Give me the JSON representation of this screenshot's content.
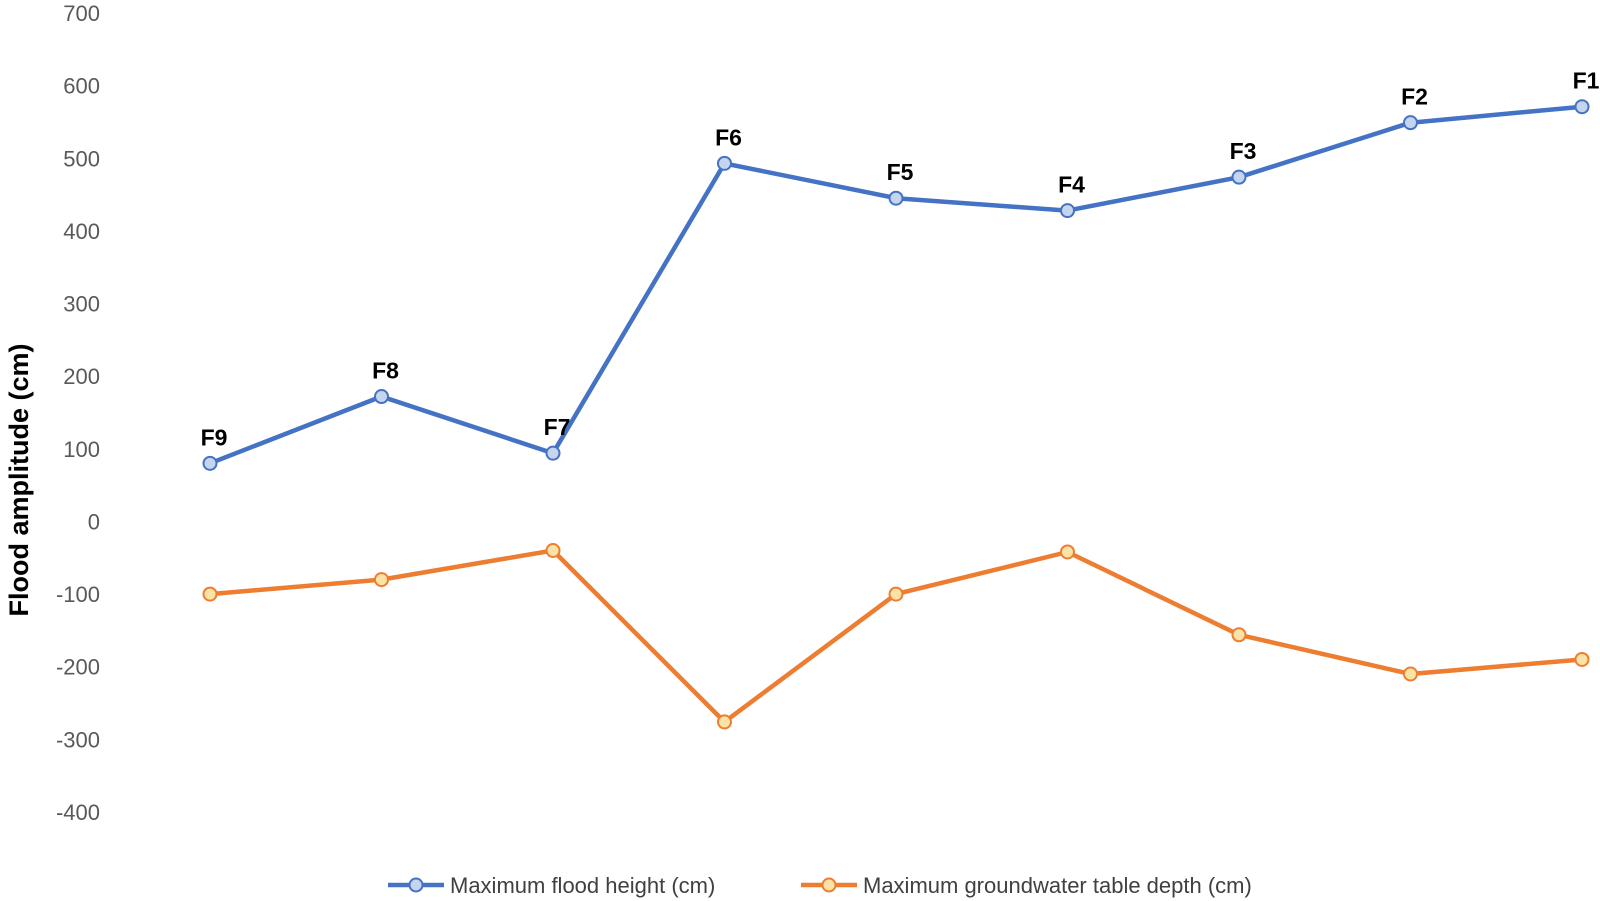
{
  "chart_data": {
    "type": "line",
    "title": "",
    "xlabel": "",
    "ylabel": "Flood amplitude (cm)",
    "ylim": [
      -400,
      700
    ],
    "yticks": [
      700,
      600,
      500,
      400,
      300,
      200,
      100,
      0,
      -100,
      -200,
      -300,
      -400
    ],
    "grid": false,
    "legend_position": "bottom",
    "categories": [
      "F9",
      "F8",
      "F7",
      "F6",
      "F5",
      "F4",
      "F3",
      "F2",
      "F1"
    ],
    "point_labels": [
      "F9",
      "F8",
      "F7",
      "F6",
      "F5",
      "F4",
      "F3",
      "F2",
      "F1"
    ],
    "series": [
      {
        "name": "Maximum flood height (cm)",
        "values": [
          80,
          172,
          94,
          493,
          445,
          428,
          474,
          549,
          571
        ],
        "color": "#4472C4",
        "marker_fill": "#C5D5EE"
      },
      {
        "name": "Maximum groundwater table depth (cm)",
        "values": [
          -100,
          -80,
          -40,
          -276,
          -100,
          -42,
          -156,
          -210,
          -190
        ],
        "color": "#ED7D31",
        "marker_fill": "#FBE2A6"
      }
    ]
  }
}
